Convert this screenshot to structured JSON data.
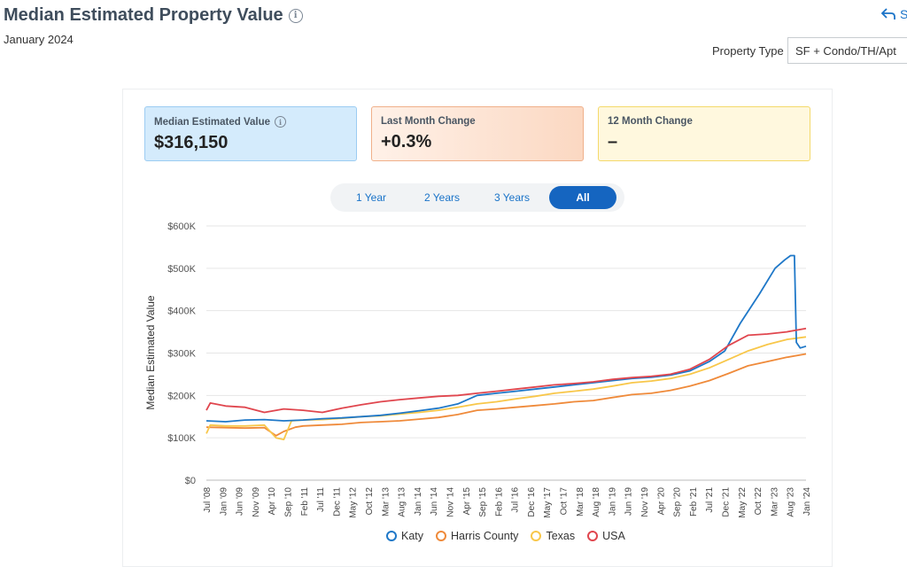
{
  "header": {
    "title": "Median Estimated Property Value",
    "date": "January 2024",
    "share_label": "S"
  },
  "filter": {
    "label": "Property Type",
    "value": "SF + Condo/TH/Apt"
  },
  "cards": [
    {
      "label": "Median Estimated Value",
      "value": "$316,150"
    },
    {
      "label": "Last Month Change",
      "value": "+0.3%"
    },
    {
      "label": "12 Month Change",
      "value": "–"
    }
  ],
  "range": {
    "options": [
      "1 Year",
      "2 Years",
      "3 Years",
      "All"
    ],
    "selected": "All"
  },
  "colors": {
    "Katy": "#1f78c8",
    "Harris County": "#ef8a3a",
    "Texas": "#f8c74a",
    "USA": "#e0464e"
  },
  "chart_data": {
    "type": "line",
    "ylabel": "Median Estimated Value",
    "ylim": [
      0,
      600000
    ],
    "yticks": [
      "$0",
      "$100K",
      "$200K",
      "$300K",
      "$400K",
      "$500K",
      "$600K"
    ],
    "x_start": "2008-07",
    "x_end": "2024-01",
    "xtick_labels": [
      "Jul '08",
      "Jan '09",
      "Jun '09",
      "Nov '09",
      "Apr '10",
      "Sep '10",
      "Feb '11",
      "Jul '11",
      "Dec '11",
      "May '12",
      "Oct '12",
      "Mar '13",
      "Aug '13",
      "Jan '14",
      "Jun '14",
      "Nov '14",
      "Apr '15",
      "Sep '15",
      "Feb '16",
      "Jul '16",
      "Dec '16",
      "May '17",
      "Oct '17",
      "Mar '18",
      "Aug '18",
      "Jan '19",
      "Jun '19",
      "Nov '19",
      "Apr '20",
      "Sep '20",
      "Feb '21",
      "Jul '21",
      "Dec '21",
      "May '22",
      "Oct '22",
      "Mar '23",
      "Aug '23",
      "Jan '24"
    ],
    "series": [
      {
        "name": "Katy",
        "points": [
          [
            2008.5,
            140000
          ],
          [
            2009.0,
            138000
          ],
          [
            2009.5,
            142000
          ],
          [
            2010.0,
            143000
          ],
          [
            2010.5,
            140000
          ],
          [
            2011.0,
            142000
          ],
          [
            2011.5,
            145000
          ],
          [
            2012.0,
            147000
          ],
          [
            2012.5,
            150000
          ],
          [
            2013.0,
            153000
          ],
          [
            2013.5,
            158000
          ],
          [
            2014.0,
            164000
          ],
          [
            2014.5,
            170000
          ],
          [
            2015.0,
            180000
          ],
          [
            2015.5,
            200000
          ],
          [
            2016.0,
            205000
          ],
          [
            2016.5,
            210000
          ],
          [
            2017.0,
            215000
          ],
          [
            2017.5,
            220000
          ],
          [
            2018.0,
            225000
          ],
          [
            2018.5,
            230000
          ],
          [
            2019.0,
            235000
          ],
          [
            2019.5,
            240000
          ],
          [
            2020.0,
            243000
          ],
          [
            2020.5,
            248000
          ],
          [
            2021.0,
            258000
          ],
          [
            2021.5,
            280000
          ],
          [
            2021.9,
            305000
          ],
          [
            2022.3,
            370000
          ],
          [
            2022.8,
            440000
          ],
          [
            2023.2,
            500000
          ],
          [
            2023.45,
            520000
          ],
          [
            2023.6,
            530000
          ],
          [
            2023.7,
            530000
          ],
          [
            2023.75,
            325000
          ],
          [
            2023.85,
            312000
          ],
          [
            2024.0,
            316150
          ]
        ]
      },
      {
        "name": "Harris County",
        "points": [
          [
            2008.5,
            125000
          ],
          [
            2009.0,
            124000
          ],
          [
            2009.5,
            123000
          ],
          [
            2010.0,
            124000
          ],
          [
            2010.3,
            105000
          ],
          [
            2010.5,
            115000
          ],
          [
            2010.8,
            125000
          ],
          [
            2011.0,
            128000
          ],
          [
            2011.5,
            130000
          ],
          [
            2012.0,
            132000
          ],
          [
            2012.5,
            136000
          ],
          [
            2013.0,
            138000
          ],
          [
            2013.5,
            140000
          ],
          [
            2014.0,
            144000
          ],
          [
            2014.5,
            148000
          ],
          [
            2015.0,
            155000
          ],
          [
            2015.5,
            165000
          ],
          [
            2016.0,
            168000
          ],
          [
            2016.5,
            172000
          ],
          [
            2017.0,
            176000
          ],
          [
            2017.5,
            180000
          ],
          [
            2018.0,
            185000
          ],
          [
            2018.5,
            188000
          ],
          [
            2019.0,
            195000
          ],
          [
            2019.5,
            202000
          ],
          [
            2020.0,
            205000
          ],
          [
            2020.5,
            212000
          ],
          [
            2021.0,
            222000
          ],
          [
            2021.5,
            235000
          ],
          [
            2022.0,
            252000
          ],
          [
            2022.5,
            270000
          ],
          [
            2023.0,
            280000
          ],
          [
            2023.5,
            290000
          ],
          [
            2024.0,
            298000
          ]
        ]
      },
      {
        "name": "Texas",
        "points": [
          [
            2008.5,
            110000
          ],
          [
            2008.6,
            130000
          ],
          [
            2009.0,
            128000
          ],
          [
            2009.5,
            128000
          ],
          [
            2010.0,
            130000
          ],
          [
            2010.3,
            100000
          ],
          [
            2010.5,
            96000
          ],
          [
            2010.7,
            140000
          ],
          [
            2011.0,
            142000
          ],
          [
            2011.5,
            143000
          ],
          [
            2012.0,
            146000
          ],
          [
            2012.5,
            150000
          ],
          [
            2013.0,
            152000
          ],
          [
            2013.5,
            156000
          ],
          [
            2014.0,
            160000
          ],
          [
            2014.5,
            165000
          ],
          [
            2015.0,
            172000
          ],
          [
            2015.5,
            180000
          ],
          [
            2016.0,
            185000
          ],
          [
            2016.5,
            192000
          ],
          [
            2017.0,
            198000
          ],
          [
            2017.5,
            205000
          ],
          [
            2018.0,
            210000
          ],
          [
            2018.5,
            215000
          ],
          [
            2019.0,
            222000
          ],
          [
            2019.5,
            230000
          ],
          [
            2020.0,
            234000
          ],
          [
            2020.5,
            240000
          ],
          [
            2021.0,
            250000
          ],
          [
            2021.5,
            265000
          ],
          [
            2022.0,
            285000
          ],
          [
            2022.5,
            305000
          ],
          [
            2023.0,
            320000
          ],
          [
            2023.5,
            332000
          ],
          [
            2024.0,
            338000
          ]
        ]
      },
      {
        "name": "USA",
        "points": [
          [
            2008.5,
            165000
          ],
          [
            2008.6,
            182000
          ],
          [
            2009.0,
            175000
          ],
          [
            2009.5,
            172000
          ],
          [
            2010.0,
            160000
          ],
          [
            2010.5,
            168000
          ],
          [
            2011.0,
            165000
          ],
          [
            2011.5,
            160000
          ],
          [
            2012.0,
            170000
          ],
          [
            2012.5,
            178000
          ],
          [
            2013.0,
            185000
          ],
          [
            2013.5,
            190000
          ],
          [
            2014.0,
            194000
          ],
          [
            2014.5,
            198000
          ],
          [
            2015.0,
            200000
          ],
          [
            2015.5,
            205000
          ],
          [
            2016.0,
            210000
          ],
          [
            2016.5,
            215000
          ],
          [
            2017.0,
            220000
          ],
          [
            2017.5,
            225000
          ],
          [
            2018.0,
            228000
          ],
          [
            2018.5,
            232000
          ],
          [
            2019.0,
            238000
          ],
          [
            2019.5,
            242000
          ],
          [
            2020.0,
            245000
          ],
          [
            2020.5,
            250000
          ],
          [
            2021.0,
            262000
          ],
          [
            2021.5,
            285000
          ],
          [
            2022.0,
            318000
          ],
          [
            2022.5,
            342000
          ],
          [
            2023.0,
            345000
          ],
          [
            2023.5,
            350000
          ],
          [
            2024.0,
            358000
          ]
        ]
      }
    ]
  }
}
